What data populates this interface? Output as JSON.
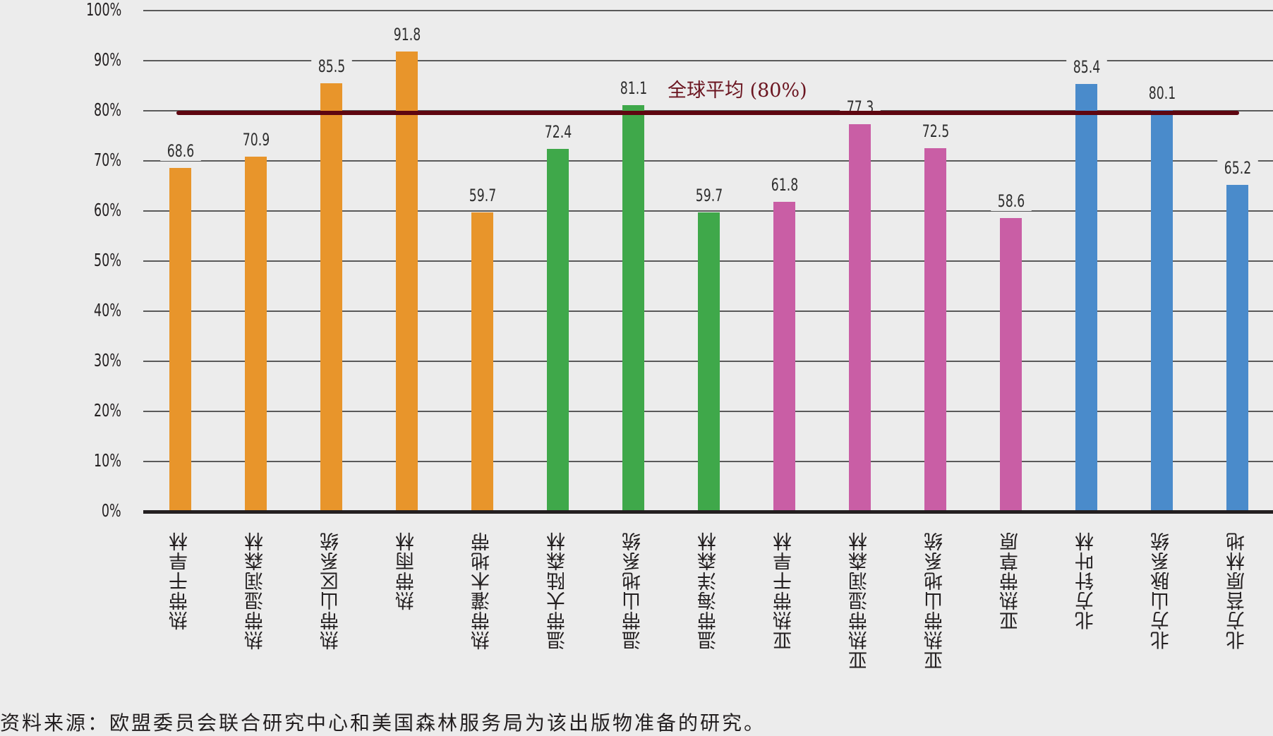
{
  "chart_data": {
    "type": "bar",
    "title": "",
    "xlabel": "",
    "ylabel": "",
    "ylim": [
      0,
      100
    ],
    "y_ticks": [
      "0%",
      "10%",
      "20%",
      "30%",
      "40%",
      "50%",
      "60%",
      "70%",
      "80%",
      "90%",
      "100%"
    ],
    "grid": true,
    "categories": [
      "热带干旱林",
      "热带湿润森林",
      "热带山区系统",
      "热带雨林",
      "热带灌木地带",
      "温带大陆森林",
      "温带山地系统",
      "温带海洋森林",
      "亚热带干旱林",
      "亚热带湿润森林",
      "亚热带山地系统",
      "亚热带草原",
      "北方针叶林",
      "北方山脉系统",
      "北方苔原林地"
    ],
    "values": [
      68.6,
      70.9,
      85.5,
      91.8,
      59.7,
      72.4,
      81.1,
      59.7,
      61.8,
      77.3,
      72.5,
      58.6,
      85.4,
      80.1,
      65.2
    ],
    "value_labels": [
      "68.6",
      "70.9",
      "85.5",
      "91.8",
      "59.7",
      "72.4",
      "81.1",
      "59.7",
      "61.8",
      "77.3",
      "72.5",
      "58.6",
      "85.4",
      "80.1",
      "65.2"
    ],
    "groups": [
      {
        "name": "热带",
        "color": "#e8952b",
        "indices": [
          0,
          1,
          2,
          3,
          4
        ]
      },
      {
        "name": "温带",
        "color": "#3fa84a",
        "indices": [
          5,
          6,
          7
        ]
      },
      {
        "name": "亚热带",
        "color": "#c95ea5",
        "indices": [
          8,
          9,
          10,
          11
        ]
      },
      {
        "name": "北方",
        "color": "#4a8bcb",
        "indices": [
          12,
          13,
          14
        ]
      }
    ],
    "bar_colors": [
      "#e8952b",
      "#e8952b",
      "#e8952b",
      "#e8952b",
      "#e8952b",
      "#3fa84a",
      "#3fa84a",
      "#3fa84a",
      "#c95ea5",
      "#c95ea5",
      "#c95ea5",
      "#c95ea5",
      "#4a8bcb",
      "#4a8bcb",
      "#4a8bcb"
    ],
    "reference_line": {
      "label": "全球平均 (80%)",
      "value": 80,
      "color": "#5e0610"
    },
    "annotations": [
      "全球平均 (80%)"
    ],
    "legend": null
  },
  "footnote": "资料来源：欧盟委员会联合研究中心和美国森林服务局为该出版物准备的研究。"
}
